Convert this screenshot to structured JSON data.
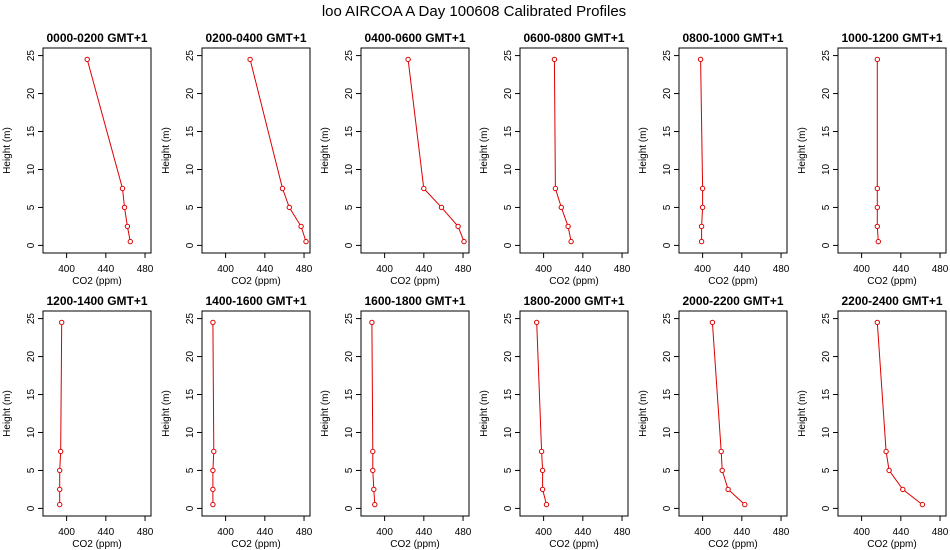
{
  "title": "loo AIRCOA A  Day 100608  Calibrated Profiles",
  "colors": {
    "series": "#dd0000",
    "axis": "#000000",
    "background": "#ffffff"
  },
  "chart_data": [
    {
      "type": "line",
      "title": "0000-0200 GMT+1",
      "xlabel": "CO2 (ppm)",
      "ylabel": "Height (m)",
      "xlim": [
        380,
        482
      ],
      "ylim": [
        0,
        25
      ],
      "xticks": [
        400,
        440,
        480
      ],
      "yticks": [
        0,
        5,
        10,
        15,
        20,
        25
      ],
      "grid": false,
      "x": [
        465,
        462,
        459,
        457,
        421
      ],
      "y": [
        0.5,
        2.5,
        5,
        7.5,
        24.5
      ]
    },
    {
      "type": "line",
      "title": "0200-0400 GMT+1",
      "xlabel": "CO2 (ppm)",
      "ylabel": "Height (m)",
      "xlim": [
        380,
        482
      ],
      "ylim": [
        0,
        25
      ],
      "xticks": [
        400,
        440,
        480
      ],
      "yticks": [
        0,
        5,
        10,
        15,
        20,
        25
      ],
      "grid": false,
      "x": [
        482,
        477,
        465,
        458,
        425
      ],
      "y": [
        0.5,
        2.5,
        5,
        7.5,
        24.5
      ]
    },
    {
      "type": "line",
      "title": "0400-0600 GMT+1",
      "xlabel": "CO2 (ppm)",
      "ylabel": "Height (m)",
      "xlim": [
        380,
        482
      ],
      "ylim": [
        0,
        25
      ],
      "xticks": [
        400,
        440,
        480
      ],
      "yticks": [
        0,
        5,
        10,
        15,
        20,
        25
      ],
      "grid": false,
      "x": [
        481,
        475,
        458,
        440,
        424
      ],
      "y": [
        0.5,
        2.5,
        5,
        7.5,
        24.5
      ]
    },
    {
      "type": "line",
      "title": "0600-0800 GMT+1",
      "xlabel": "CO2 (ppm)",
      "ylabel": "Height (m)",
      "xlim": [
        380,
        482
      ],
      "ylim": [
        0,
        25
      ],
      "xticks": [
        400,
        440,
        480
      ],
      "yticks": [
        0,
        5,
        10,
        15,
        20,
        25
      ],
      "grid": false,
      "x": [
        428,
        425,
        418,
        412,
        411
      ],
      "y": [
        0.5,
        2.5,
        5,
        7.5,
        24.5
      ]
    },
    {
      "type": "line",
      "title": "0800-1000 GMT+1",
      "xlabel": "CO2 (ppm)",
      "ylabel": "Height (m)",
      "xlim": [
        380,
        482
      ],
      "ylim": [
        0,
        25
      ],
      "xticks": [
        400,
        440,
        480
      ],
      "yticks": [
        0,
        5,
        10,
        15,
        20,
        25
      ],
      "grid": false,
      "x": [
        399,
        399,
        400,
        400,
        398
      ],
      "y": [
        0.5,
        2.5,
        5,
        7.5,
        24.5
      ]
    },
    {
      "type": "line",
      "title": "1000-1200 GMT+1",
      "xlabel": "CO2 (ppm)",
      "ylabel": "Height (m)",
      "xlim": [
        380,
        482
      ],
      "ylim": [
        0,
        25
      ],
      "xticks": [
        400,
        440,
        480
      ],
      "yticks": [
        0,
        5,
        10,
        15,
        20,
        25
      ],
      "grid": false,
      "x": [
        417,
        416,
        416,
        416,
        416
      ],
      "y": [
        0.5,
        2.5,
        5,
        7.5,
        24.5
      ]
    },
    {
      "type": "line",
      "title": "1200-1400 GMT+1",
      "xlabel": "CO2 (ppm)",
      "ylabel": "Height (m)",
      "xlim": [
        380,
        482
      ],
      "ylim": [
        0,
        25
      ],
      "xticks": [
        400,
        440,
        480
      ],
      "yticks": [
        0,
        5,
        10,
        15,
        20,
        25
      ],
      "grid": false,
      "x": [
        393,
        393,
        393,
        394,
        395
      ],
      "y": [
        0.5,
        2.5,
        5,
        7.5,
        24.5
      ]
    },
    {
      "type": "line",
      "title": "1400-1600 GMT+1",
      "xlabel": "CO2 (ppm)",
      "ylabel": "Height (m)",
      "xlim": [
        380,
        482
      ],
      "ylim": [
        0,
        25
      ],
      "xticks": [
        400,
        440,
        480
      ],
      "yticks": [
        0,
        5,
        10,
        15,
        20,
        25
      ],
      "grid": false,
      "x": [
        387,
        387,
        387,
        388,
        387
      ],
      "y": [
        0.5,
        2.5,
        5,
        7.5,
        24.5
      ]
    },
    {
      "type": "line",
      "title": "1600-1800 GMT+1",
      "xlabel": "CO2 (ppm)",
      "ylabel": "Height (m)",
      "xlim": [
        380,
        482
      ],
      "ylim": [
        0,
        25
      ],
      "xticks": [
        400,
        440,
        480
      ],
      "yticks": [
        0,
        5,
        10,
        15,
        20,
        25
      ],
      "grid": false,
      "x": [
        390,
        389,
        388,
        388,
        387
      ],
      "y": [
        0.5,
        2.5,
        5,
        7.5,
        24.5
      ]
    },
    {
      "type": "line",
      "title": "1800-2000 GMT+1",
      "xlabel": "CO2 (ppm)",
      "ylabel": "Height (m)",
      "xlim": [
        380,
        482
      ],
      "ylim": [
        0,
        25
      ],
      "xticks": [
        400,
        440,
        480
      ],
      "yticks": [
        0,
        5,
        10,
        15,
        20,
        25
      ],
      "grid": false,
      "x": [
        403,
        399,
        399,
        398,
        393
      ],
      "y": [
        0.5,
        2.5,
        5,
        7.5,
        24.5
      ]
    },
    {
      "type": "line",
      "title": "2000-2200 GMT+1",
      "xlabel": "CO2 (ppm)",
      "ylabel": "Height (m)",
      "xlim": [
        380,
        482
      ],
      "ylim": [
        0,
        25
      ],
      "xticks": [
        400,
        440,
        480
      ],
      "yticks": [
        0,
        5,
        10,
        15,
        20,
        25
      ],
      "grid": false,
      "x": [
        443,
        426,
        420,
        419,
        410
      ],
      "y": [
        0.5,
        2.5,
        5,
        7.5,
        24.5
      ]
    },
    {
      "type": "line",
      "title": "2200-2400 GMT+1",
      "xlabel": "CO2 (ppm)",
      "ylabel": "Height (m)",
      "xlim": [
        380,
        482
      ],
      "ylim": [
        0,
        25
      ],
      "xticks": [
        400,
        440,
        480
      ],
      "yticks": [
        0,
        5,
        10,
        15,
        20,
        25
      ],
      "grid": false,
      "x": [
        462,
        442,
        428,
        425,
        416
      ],
      "y": [
        0.5,
        2.5,
        5,
        7.5,
        24.5
      ]
    }
  ]
}
